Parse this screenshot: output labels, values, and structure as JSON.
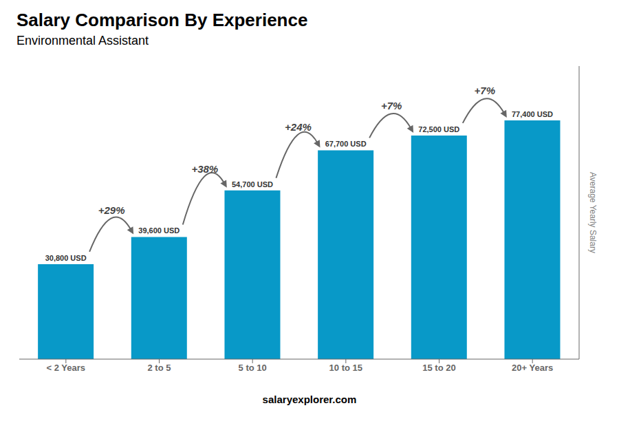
{
  "chart_data": {
    "type": "bar",
    "title": "Salary Comparison By Experience",
    "subtitle": "Environmental Assistant",
    "ylabel": "Average Yearly Salary",
    "categories": [
      "< 2 Years",
      "2 to 5",
      "5 to 10",
      "10 to 15",
      "15 to 20",
      "20+ Years"
    ],
    "values": [
      30800,
      39600,
      54700,
      67700,
      72500,
      77400
    ],
    "value_labels": [
      "30,800 USD",
      "39,600 USD",
      "54,700 USD",
      "67,700 USD",
      "72,500 USD",
      "77,400 USD"
    ],
    "data_labels": true,
    "annotations": [
      "+29%",
      "+38%",
      "+24%",
      "+7%",
      "+7%"
    ],
    "footer": [
      "salary",
      "explorer.com"
    ],
    "color": "#0899c8",
    "ylim": [
      0,
      95000
    ],
    "tick_labels": "x",
    "grid": false
  }
}
